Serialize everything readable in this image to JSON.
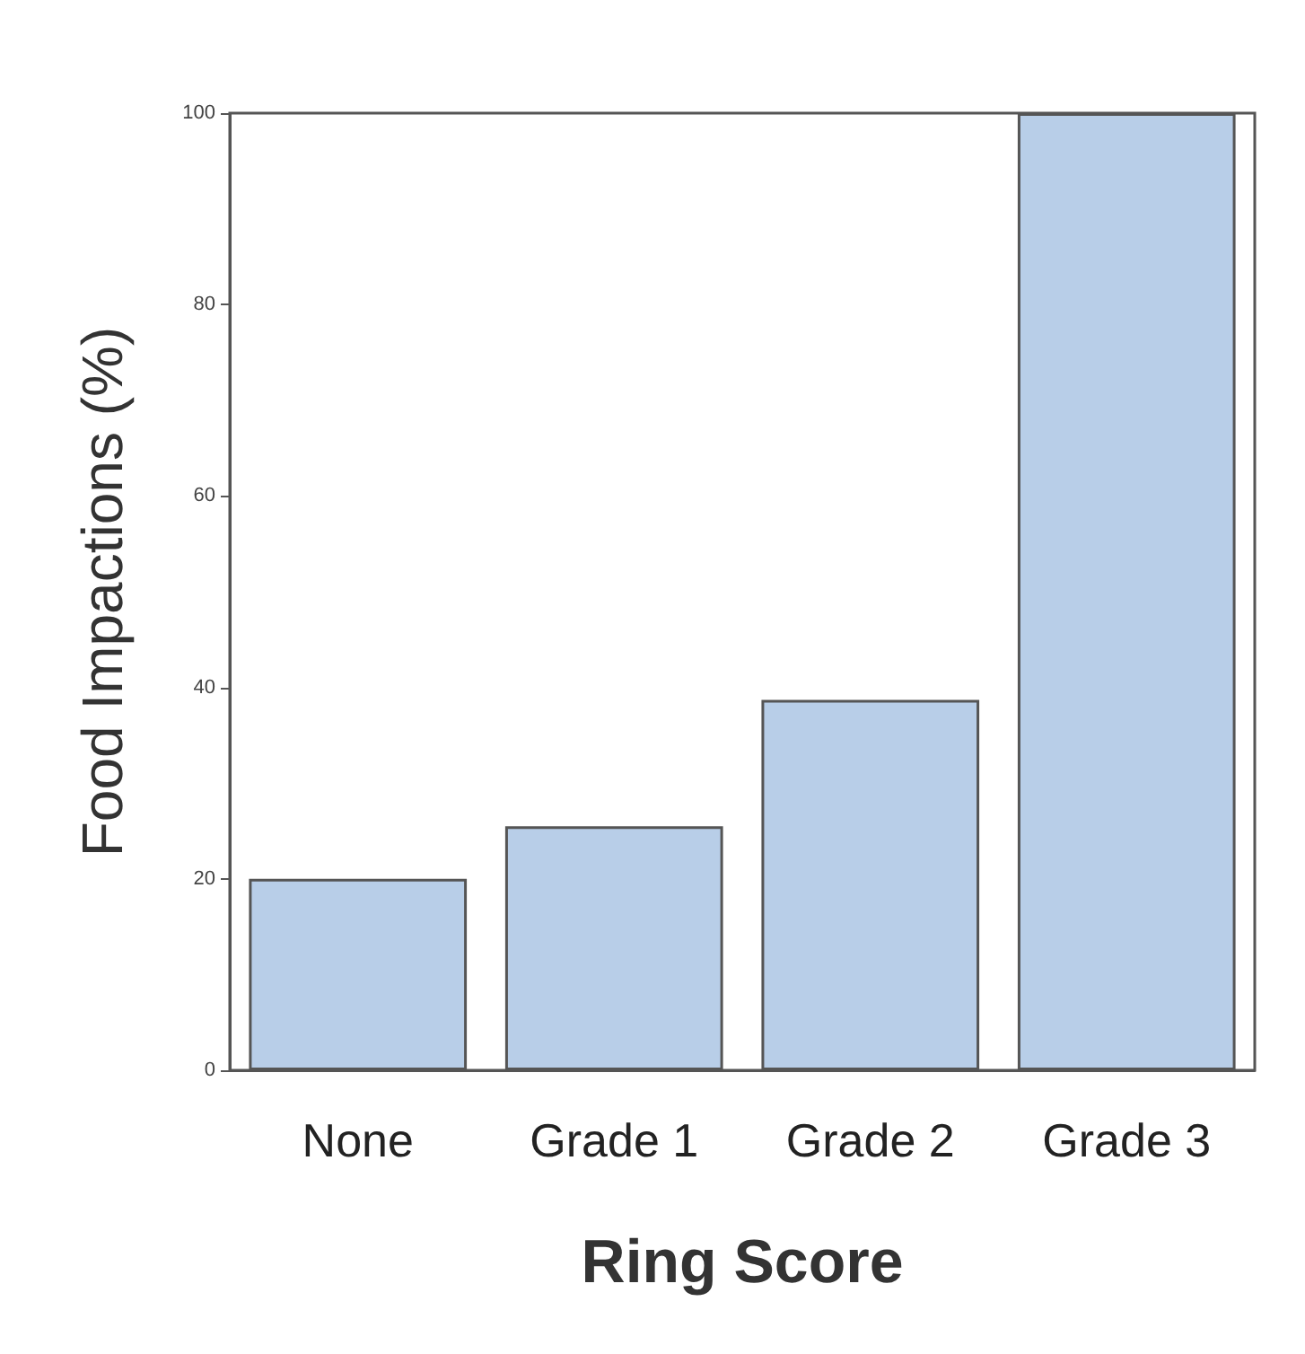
{
  "chart_data": {
    "type": "bar",
    "xlabel": "Ring Score",
    "ylabel": "Food Impactions (%)",
    "categories": [
      "None",
      "Grade 1",
      "Grade 2",
      "Grade 3"
    ],
    "values": [
      20,
      25.5,
      38.7,
      100
    ],
    "color": "#b8cee8",
    "ylim": [
      0,
      100
    ],
    "yticks": [
      0,
      20,
      40,
      60,
      80,
      100
    ],
    "grid": false
  }
}
